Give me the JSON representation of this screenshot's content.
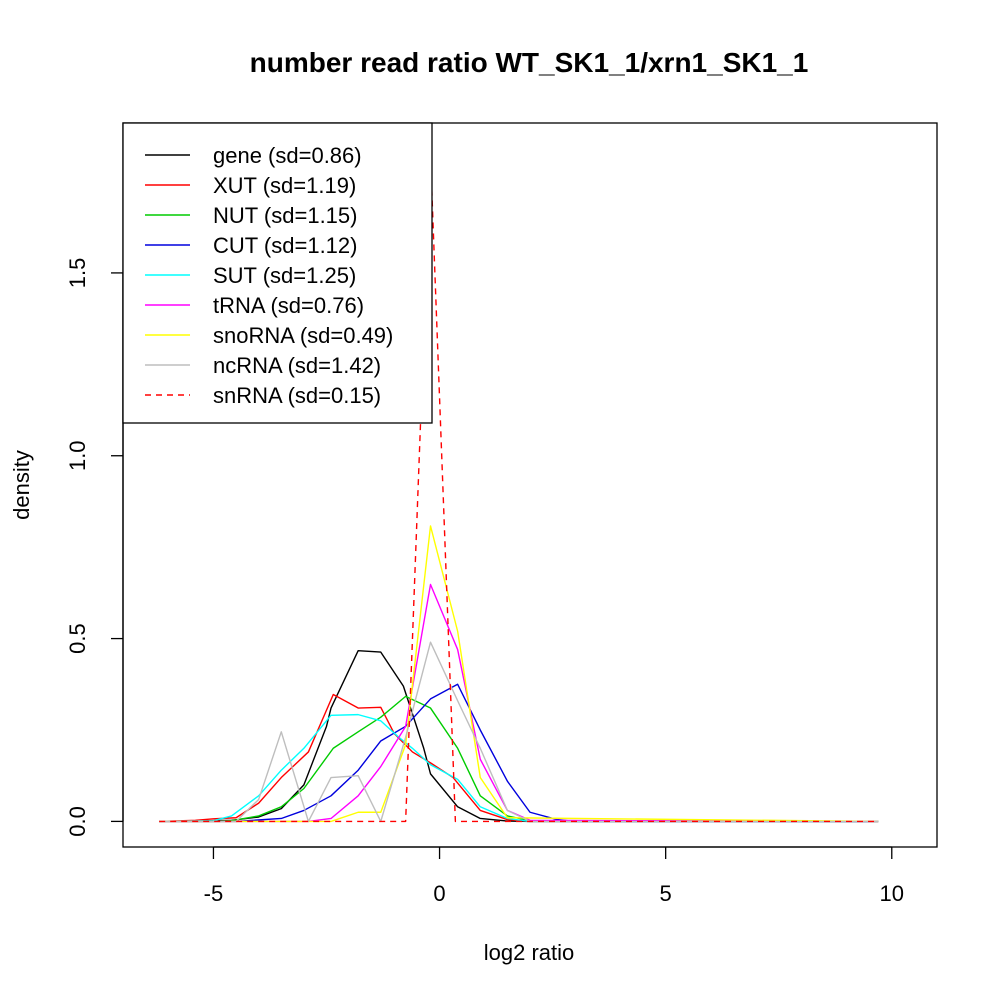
{
  "chart_data": {
    "type": "line",
    "title": "number read ratio WT_SK1_1/xrn1_SK1_1",
    "xlabel": "log2 ratio",
    "ylabel": "density",
    "xlim": [
      -7,
      11
    ],
    "ylim": [
      -0.07,
      1.91
    ],
    "x_ticks": [
      -5,
      0,
      5,
      10
    ],
    "x_tick_labels": [
      "-5",
      "0",
      "5",
      "10"
    ],
    "y_ticks": [
      0.0,
      0.5,
      1.0,
      1.5
    ],
    "y_tick_labels": [
      "0.0",
      "0.5",
      "1.0",
      "1.5"
    ],
    "legend_position": "top-left",
    "grid": false,
    "series": [
      {
        "name": "gene (sd=0.86)",
        "color": "#000000",
        "dash": "solid",
        "points": [
          [
            -6.2,
            0.0
          ],
          [
            -5.1,
            0.002
          ],
          [
            -4.6,
            0.003
          ],
          [
            -4.0,
            0.012
          ],
          [
            -3.5,
            0.035
          ],
          [
            -3.0,
            0.1
          ],
          [
            -2.5,
            0.26
          ],
          [
            -2.4,
            0.31
          ],
          [
            -1.8,
            0.467
          ],
          [
            -1.3,
            0.463
          ],
          [
            -0.8,
            0.37
          ],
          [
            -0.35,
            0.2
          ],
          [
            -0.2,
            0.13
          ],
          [
            0.4,
            0.04
          ],
          [
            0.9,
            0.008
          ],
          [
            1.5,
            0.001
          ],
          [
            2.0,
            0.0
          ],
          [
            9.7,
            0.0
          ]
        ]
      },
      {
        "name": "XUT (sd=1.19)",
        "color": "#ff0000",
        "dash": "solid",
        "points": [
          [
            -6.2,
            0.0
          ],
          [
            -5.4,
            0.003
          ],
          [
            -5.0,
            0.007
          ],
          [
            -4.5,
            0.01
          ],
          [
            -4.0,
            0.05
          ],
          [
            -3.5,
            0.12
          ],
          [
            -2.9,
            0.19
          ],
          [
            -2.35,
            0.347
          ],
          [
            -1.8,
            0.31
          ],
          [
            -1.3,
            0.312
          ],
          [
            -1.0,
            0.24
          ],
          [
            -0.6,
            0.19
          ],
          [
            -0.2,
            0.16
          ],
          [
            0.3,
            0.12
          ],
          [
            0.9,
            0.03
          ],
          [
            1.5,
            0.005
          ],
          [
            2.0,
            0.0
          ],
          [
            9.7,
            0.0
          ]
        ]
      },
      {
        "name": "NUT (sd=1.15)",
        "color": "#00cc00",
        "dash": "solid",
        "points": [
          [
            -6.2,
            0.0
          ],
          [
            -5.0,
            0.0
          ],
          [
            -4.6,
            0.002
          ],
          [
            -4.0,
            0.015
          ],
          [
            -3.5,
            0.04
          ],
          [
            -3.0,
            0.09
          ],
          [
            -2.35,
            0.2
          ],
          [
            -1.8,
            0.245
          ],
          [
            -1.3,
            0.285
          ],
          [
            -0.75,
            0.342
          ],
          [
            -0.2,
            0.31
          ],
          [
            0.4,
            0.2
          ],
          [
            0.9,
            0.07
          ],
          [
            1.5,
            0.015
          ],
          [
            2.0,
            0.002
          ],
          [
            9.7,
            0.0
          ]
        ]
      },
      {
        "name": "CUT (sd=1.12)",
        "color": "#0000dd",
        "dash": "solid",
        "points": [
          [
            -6.2,
            0.0
          ],
          [
            -4.5,
            0.0
          ],
          [
            -3.5,
            0.008
          ],
          [
            -3.0,
            0.03
          ],
          [
            -2.4,
            0.07
          ],
          [
            -1.8,
            0.14
          ],
          [
            -1.3,
            0.22
          ],
          [
            -0.75,
            0.26
          ],
          [
            -0.2,
            0.335
          ],
          [
            0.4,
            0.375
          ],
          [
            0.9,
            0.25
          ],
          [
            1.5,
            0.11
          ],
          [
            2.0,
            0.025
          ],
          [
            2.6,
            0.005
          ],
          [
            3.0,
            0.0
          ],
          [
            9.7,
            0.0
          ]
        ]
      },
      {
        "name": "SUT (sd=1.25)",
        "color": "#00ffff",
        "dash": "solid",
        "points": [
          [
            -6.2,
            0.0
          ],
          [
            -5.0,
            0.002
          ],
          [
            -4.6,
            0.015
          ],
          [
            -4.0,
            0.07
          ],
          [
            -3.5,
            0.14
          ],
          [
            -3.0,
            0.2
          ],
          [
            -2.4,
            0.29
          ],
          [
            -1.8,
            0.292
          ],
          [
            -1.3,
            0.275
          ],
          [
            -0.9,
            0.23
          ],
          [
            -0.6,
            0.2
          ],
          [
            -0.2,
            0.155
          ],
          [
            0.4,
            0.115
          ],
          [
            0.9,
            0.04
          ],
          [
            1.5,
            0.008
          ],
          [
            2.0,
            0.0
          ],
          [
            9.7,
            0.0
          ]
        ]
      },
      {
        "name": "tRNA (sd=0.76)",
        "color": "#ff00ff",
        "dash": "solid",
        "points": [
          [
            -6.2,
            0.0
          ],
          [
            -2.9,
            0.0
          ],
          [
            -2.4,
            0.008
          ],
          [
            -1.8,
            0.07
          ],
          [
            -1.3,
            0.15
          ],
          [
            -0.75,
            0.26
          ],
          [
            -0.2,
            0.648
          ],
          [
            0.4,
            0.47
          ],
          [
            0.9,
            0.17
          ],
          [
            1.5,
            0.03
          ],
          [
            2.0,
            0.003
          ],
          [
            9.7,
            0.0
          ]
        ]
      },
      {
        "name": "snoRNA (sd=0.49)",
        "color": "#ffff00",
        "dash": "solid",
        "points": [
          [
            -6.2,
            0.0
          ],
          [
            -2.4,
            0.0
          ],
          [
            -1.8,
            0.025
          ],
          [
            -1.3,
            0.025
          ],
          [
            -0.75,
            0.21
          ],
          [
            -0.2,
            0.808
          ],
          [
            0.4,
            0.52
          ],
          [
            0.9,
            0.12
          ],
          [
            1.5,
            0.01
          ],
          [
            9.7,
            0.0
          ]
        ]
      },
      {
        "name": "ncRNA (sd=1.42)",
        "color": "#bebebe",
        "dash": "solid",
        "points": [
          [
            -6.2,
            0.0
          ],
          [
            -4.5,
            0.0
          ],
          [
            -4.0,
            0.06
          ],
          [
            -3.5,
            0.245
          ],
          [
            -2.9,
            0.0
          ],
          [
            -2.4,
            0.12
          ],
          [
            -1.8,
            0.125
          ],
          [
            -1.3,
            0.0
          ],
          [
            -0.75,
            0.23
          ],
          [
            -0.2,
            0.49
          ],
          [
            0.4,
            0.33
          ],
          [
            0.9,
            0.2
          ],
          [
            1.5,
            0.03
          ],
          [
            2.0,
            0.0
          ],
          [
            9.7,
            0.0
          ]
        ]
      },
      {
        "name": "snRNA (sd=0.15)",
        "color": "#ff0000",
        "dash": "dashed",
        "points": [
          [
            -6.2,
            0.0
          ],
          [
            -0.75,
            0.0
          ],
          [
            -0.2,
            1.82
          ],
          [
            0.35,
            0.0
          ],
          [
            9.7,
            0.0
          ]
        ]
      }
    ]
  }
}
